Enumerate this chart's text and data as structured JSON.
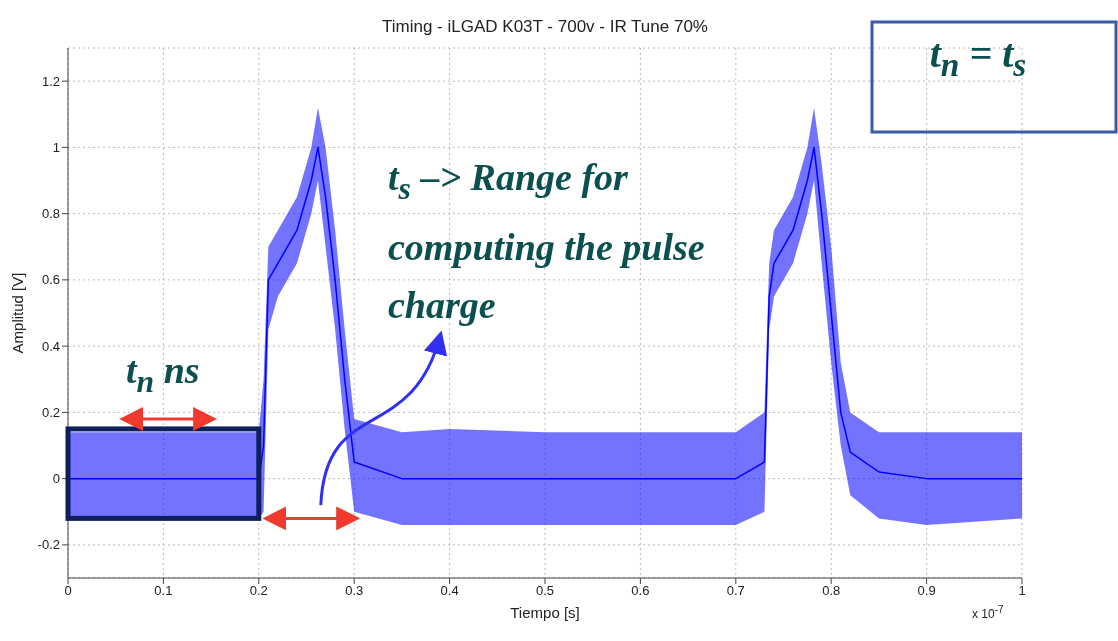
{
  "chart_data": {
    "type": "line",
    "title": "Timing - iLGAD K03T - 700v - IR Tune 70%",
    "xlabel": "Tiempo [s]",
    "ylabel": "Amplitud [V]",
    "annotations": [
      "x 10$^{-7}$",
      "t$_{n}$ = t$_{s}$",
      "t$_{s}$ –> Range for computing the pulse charge",
      "t$_{n}$ ns"
    ],
    "x": [
      0,
      0.05,
      0.1,
      0.15,
      0.2,
      0.205,
      0.21,
      0.22,
      0.24,
      0.255,
      0.262,
      0.27,
      0.28,
      0.29,
      0.3,
      0.35,
      0.4,
      0.5,
      0.6,
      0.7,
      0.73,
      0.735,
      0.74,
      0.76,
      0.775,
      0.782,
      0.79,
      0.8,
      0.81,
      0.82,
      0.85,
      0.9,
      1.0
    ],
    "series": [
      {
        "color": "#0000ff",
        "values": [
          0,
          0,
          0,
          0,
          0,
          0.1,
          0.6,
          0.65,
          0.75,
          0.9,
          1.0,
          0.85,
          0.6,
          0.3,
          0.05,
          0,
          0,
          0,
          0,
          0,
          0.05,
          0.55,
          0.65,
          0.75,
          0.9,
          1.0,
          0.8,
          0.5,
          0.2,
          0.08,
          0.02,
          0,
          0
        ],
        "lower": [
          -0.12,
          -0.12,
          -0.12,
          -0.12,
          -0.12,
          -0.1,
          0.45,
          0.55,
          0.65,
          0.8,
          0.9,
          0.7,
          0.45,
          0.15,
          -0.1,
          -0.14,
          -0.14,
          -0.14,
          -0.14,
          -0.14,
          -0.1,
          0.45,
          0.55,
          0.65,
          0.8,
          0.9,
          0.65,
          0.35,
          0.1,
          -0.05,
          -0.12,
          -0.14,
          -0.12
        ],
        "upper": [
          0.14,
          0.14,
          0.14,
          0.14,
          0.14,
          0.3,
          0.7,
          0.75,
          0.85,
          1.0,
          1.12,
          1.0,
          0.75,
          0.45,
          0.18,
          0.14,
          0.15,
          0.14,
          0.14,
          0.14,
          0.2,
          0.65,
          0.75,
          0.85,
          1.0,
          1.12,
          0.95,
          0.7,
          0.35,
          0.2,
          0.14,
          0.14,
          0.14
        ]
      }
    ],
    "xlim": [
      0,
      1
    ],
    "xticks": [
      0,
      0.1,
      0.2,
      0.3,
      0.4,
      0.5,
      0.6,
      0.7,
      0.8,
      0.9,
      1
    ],
    "ylim": [
      -0.3,
      1.3
    ],
    "yticks": [
      -0.2,
      0,
      0.2,
      0.4,
      0.6,
      0.8,
      1,
      1.2
    ],
    "grid": true,
    "legend": false,
    "marker": "none",
    "line_style": "solid"
  }
}
